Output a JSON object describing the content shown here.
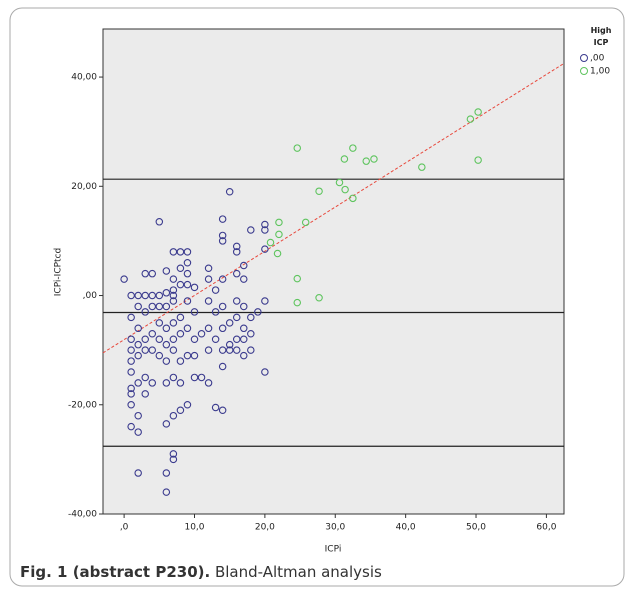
{
  "chart_data": {
    "type": "scatter",
    "xlabel": "ICPi",
    "ylabel": "ICPi-ICPtcd",
    "legend_title": "High ICP",
    "xlim": [
      -3,
      62.5
    ],
    "ylim": [
      -40,
      48.8
    ],
    "xticks": [
      {
        "value": 0,
        "label": ",0"
      },
      {
        "value": 10,
        "label": "10,0"
      },
      {
        "value": 20,
        "label": "20,0"
      },
      {
        "value": 30,
        "label": "30,0"
      },
      {
        "value": 40,
        "label": "40,0"
      },
      {
        "value": 50,
        "label": "50,0"
      },
      {
        "value": 60,
        "label": "60,0"
      }
    ],
    "yticks": [
      {
        "value": -40,
        "label": "-40,00"
      },
      {
        "value": -20,
        "label": "-20,00"
      },
      {
        "value": 0,
        "label": ",00"
      },
      {
        "value": 20,
        "label": "20,00"
      },
      {
        "value": 40,
        "label": "40,00"
      }
    ],
    "hlines": [
      21.3,
      -3.1,
      -27.6
    ],
    "fit_line": {
      "color": "#e8483c",
      "x": [
        -3,
        62.5
      ],
      "y": [
        -10.5,
        42.5
      ]
    },
    "series": [
      {
        "name": ",00",
        "color": "#3b3b8e",
        "x": [
          0,
          1,
          1,
          1,
          1,
          1,
          1,
          1,
          1,
          1,
          1,
          2,
          2,
          2,
          2,
          2,
          2,
          2,
          2,
          2,
          3,
          3,
          3,
          3,
          3,
          3,
          3,
          4,
          4,
          4,
          4,
          4,
          4,
          5,
          5,
          5,
          5,
          5,
          5,
          6,
          6,
          6,
          6,
          6,
          6,
          6,
          6,
          6,
          6,
          7,
          7,
          7,
          7,
          7,
          7,
          7,
          7,
          7,
          7,
          7,
          7,
          8,
          8,
          8,
          8,
          8,
          8,
          8,
          8,
          9,
          9,
          9,
          9,
          9,
          9,
          9,
          9,
          10,
          10,
          10,
          10,
          10,
          11,
          11,
          12,
          12,
          12,
          12,
          12,
          12,
          13,
          13,
          13,
          13,
          14,
          14,
          14,
          14,
          14,
          14,
          14,
          14,
          14,
          15,
          15,
          15,
          15,
          16,
          16,
          16,
          16,
          16,
          16,
          16,
          17,
          17,
          17,
          17,
          17,
          17,
          18,
          18,
          18,
          18,
          19,
          20,
          20,
          20,
          20,
          20
        ],
        "y": [
          3,
          0,
          -4,
          -8,
          -10,
          -12,
          -14,
          -17,
          -18,
          -20,
          -24,
          -25,
          -22,
          -32.5,
          -16,
          -11,
          -9,
          0,
          -2,
          -6,
          4,
          0,
          -3,
          -8,
          -10,
          -15,
          -18,
          4,
          0,
          -2,
          -7,
          -10,
          -16,
          13.5,
          0,
          -2,
          -5,
          -8,
          -11,
          4.5,
          0.5,
          -2,
          -6,
          -9,
          -12,
          -16,
          -23.5,
          -32.5,
          -36,
          8,
          3,
          1,
          0,
          -1,
          -5,
          -8,
          -10,
          -15,
          -22,
          -29,
          -30,
          8,
          5,
          2,
          -4,
          -7,
          -12,
          -16,
          -21,
          8,
          6,
          4,
          2,
          -1,
          -6,
          -11,
          -20,
          1.5,
          -3,
          -8,
          -11,
          -15,
          -7,
          -15,
          5,
          3,
          -1,
          -6,
          -10,
          -16,
          1,
          -3,
          -8,
          -20.5,
          14,
          11,
          10,
          3,
          -2,
          -6,
          -10,
          -13,
          -21,
          19,
          -5,
          -9,
          -10,
          9,
          8,
          4,
          -1,
          -4,
          -8,
          -10,
          5.5,
          3,
          -2,
          -6,
          -8,
          -11,
          12,
          -4,
          -7,
          -10,
          -3,
          13,
          12,
          8.5,
          -1,
          -14
        ]
      },
      {
        "name": "1,00",
        "color": "#5ec45e",
        "x": [
          24.6,
          32.5,
          50.3,
          49.2,
          50.3,
          35.5,
          34.4,
          31.3,
          30.6,
          31.4,
          32.5,
          27.7,
          42.3,
          22,
          25.8,
          22,
          20.8,
          21.8,
          24.6,
          24.6,
          27.7
        ],
        "y": [
          27,
          27,
          33.6,
          32.3,
          24.8,
          25,
          24.6,
          25,
          20.7,
          19.4,
          17.8,
          19.1,
          23.5,
          13.4,
          13.4,
          11.2,
          9.7,
          7.7,
          3.1,
          -1.3,
          -0.4
        ]
      }
    ]
  },
  "caption": {
    "label": "Fig. 1 (abstract P230).",
    "text": " Bland-Altman analysis"
  }
}
